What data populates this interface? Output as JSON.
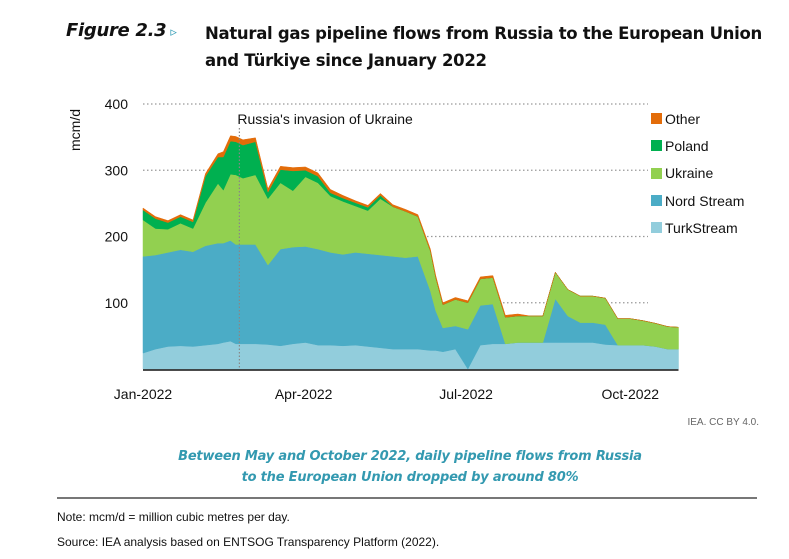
{
  "figure": {
    "label": "Figure 2.3",
    "arrow": "▹",
    "title": "Natural gas pipeline flows from Russia to the European Union and Türkiye since January 2022"
  },
  "credit": "IEA. CC BY 4.0.",
  "subtitle_line1": "Between May and October 2022, daily pipeline flows from Russia",
  "subtitle_line2": "to the European Union dropped by around 80%",
  "note": "Note: mcm/d = million cubic metres per day.",
  "source": "Source: IEA analysis based on ENTSOG Transparency Platform (2022).",
  "chart_data": {
    "type": "area",
    "stacked": true,
    "title": "Natural gas pipeline flows from Russia to the European Union and Türkiye since January 2022",
    "xlabel": "",
    "ylabel": "mcm/d",
    "ylim": [
      0,
      400
    ],
    "yticks": [
      100,
      200,
      300,
      400
    ],
    "xticks": [
      {
        "label": "Jan-2022",
        "day": 0
      },
      {
        "label": "Apr-2022",
        "day": 90
      },
      {
        "label": "Jul-2022",
        "day": 181
      },
      {
        "label": "Oct-2022",
        "day": 273
      }
    ],
    "grid": "horizontal-dotted",
    "legend": "right",
    "annotation": {
      "text": "Russia's invasion of Ukraine",
      "day": 54
    },
    "x_days": [
      0,
      7,
      14,
      21,
      28,
      35,
      42,
      45,
      49,
      52,
      56,
      63,
      70,
      77,
      84,
      91,
      98,
      105,
      112,
      119,
      126,
      133,
      140,
      147,
      154,
      161,
      164,
      168,
      175,
      182,
      189,
      196,
      203,
      210,
      217,
      224,
      231,
      238,
      245,
      252,
      259,
      266,
      273,
      280,
      287,
      294,
      300
    ],
    "series": [
      {
        "name": "TurkStream",
        "color": "#92cddc",
        "values": [
          24,
          30,
          34,
          35,
          34,
          36,
          38,
          40,
          42,
          38,
          38,
          38,
          37,
          35,
          38,
          40,
          36,
          36,
          35,
          36,
          34,
          32,
          30,
          30,
          30,
          28,
          28,
          26,
          30,
          0,
          36,
          38,
          38,
          40,
          40,
          40,
          40,
          40,
          40,
          40,
          37,
          36,
          36,
          36,
          34,
          30,
          30
        ]
      },
      {
        "name": "Nord Stream",
        "color": "#4bacc6",
        "values": [
          146,
          142,
          142,
          145,
          143,
          150,
          152,
          150,
          152,
          150,
          150,
          150,
          120,
          146,
          146,
          145,
          145,
          140,
          138,
          140,
          140,
          140,
          140,
          138,
          140,
          90,
          60,
          36,
          35,
          60,
          60,
          60,
          0,
          0,
          0,
          0,
          66,
          40,
          30,
          30,
          30,
          0,
          0,
          0,
          0,
          0,
          0
        ]
      },
      {
        "name": "Ukraine",
        "color": "#92d050",
        "values": [
          55,
          40,
          35,
          40,
          35,
          65,
          90,
          80,
          100,
          105,
          100,
          105,
          100,
          100,
          85,
          105,
          100,
          85,
          80,
          70,
          65,
          85,
          75,
          70,
          60,
          60,
          50,
          35,
          40,
          40,
          40,
          40,
          40,
          40,
          40,
          40,
          40,
          40,
          40,
          40,
          40,
          40,
          40,
          37,
          35,
          34,
          33
        ]
      },
      {
        "name": "Poland",
        "color": "#00b050",
        "values": [
          15,
          15,
          10,
          10,
          10,
          40,
          40,
          50,
          50,
          50,
          50,
          50,
          10,
          20,
          30,
          10,
          10,
          5,
          5,
          5,
          5,
          5,
          0,
          0,
          0,
          0,
          0,
          0,
          0,
          0,
          0,
          0,
          0,
          0,
          0,
          0,
          0,
          0,
          0,
          0,
          0,
          0,
          0,
          0,
          0,
          0,
          0
        ]
      },
      {
        "name": "Other",
        "color": "#e36c09",
        "values": [
          3,
          3,
          3,
          3,
          3,
          4,
          5,
          8,
          8,
          8,
          8,
          6,
          5,
          5,
          5,
          5,
          5,
          5,
          4,
          3,
          3,
          3,
          3,
          3,
          3,
          3,
          3,
          3,
          3,
          3,
          3,
          3,
          3,
          3,
          0,
          0,
          0,
          0,
          0,
          0,
          0,
          0,
          0,
          0,
          0,
          0,
          0
        ]
      }
    ]
  }
}
